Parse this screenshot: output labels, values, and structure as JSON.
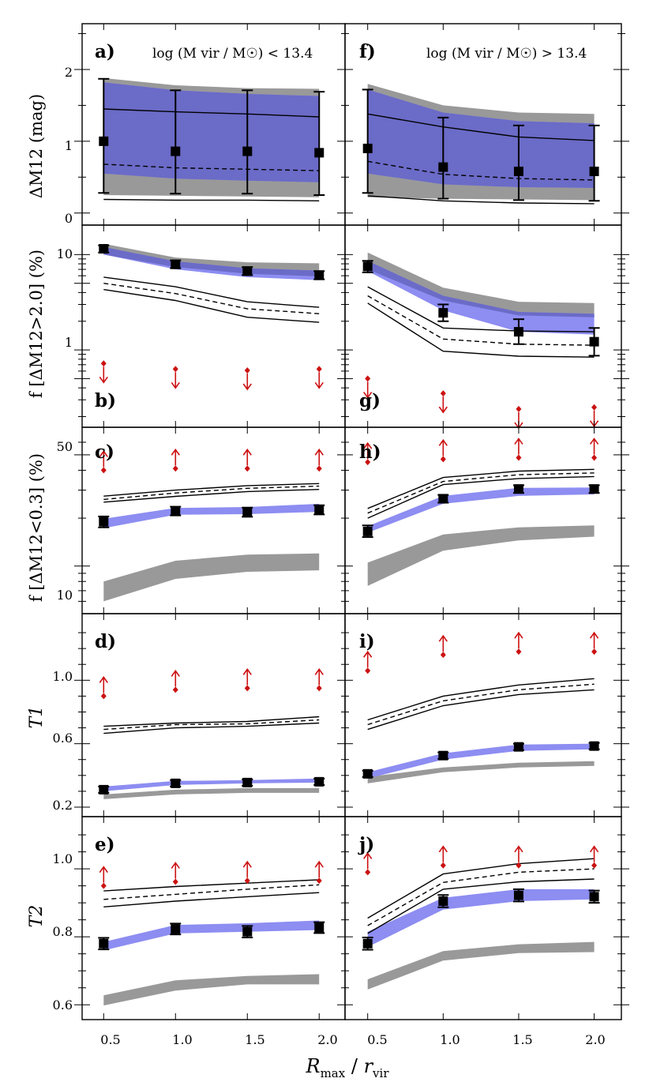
{
  "figure": {
    "xlabel_main": "R",
    "xlabel_sub": "max",
    "xlabel_sep": " / ",
    "xlabel_main2": "r",
    "xlabel_sub2": "vir",
    "x_ticks": [
      "0.5",
      "1.0",
      "1.5",
      "2.0"
    ],
    "x_values": [
      0.5,
      1.0,
      1.5,
      2.0
    ],
    "header_left": "log (M vir / M☉) < 13.4",
    "header_right": "log (M vir / M☉) > 13.4"
  },
  "rows": [
    {
      "ylabel": "ΔM12 (mag)",
      "ticks": [
        "0",
        "1",
        "2"
      ]
    },
    {
      "ylabel": "f [ΔM12>2.0] (%)",
      "ticks": [
        "1",
        "10"
      ]
    },
    {
      "ylabel": "f [ΔM12<0.3] (%)",
      "ticks": [
        "10",
        "50"
      ]
    },
    {
      "ylabel": "T1",
      "ticks": [
        "0.2",
        "0.6",
        "1.0"
      ]
    },
    {
      "ylabel": "T2",
      "ticks": [
        "0.6",
        "0.8",
        "1.0"
      ]
    }
  ],
  "colors": {
    "gray_band": "#999999",
    "blue_band": "#8d8df2",
    "overlap": "#6b6bc8",
    "arrow": "#cc1111",
    "marker": "#000000"
  },
  "chart_data": [
    {
      "panel": "a",
      "label": "a)",
      "type": "line",
      "row": 0,
      "col": 0,
      "yscale": "linear",
      "ylim": [
        -0.08,
        2.55
      ],
      "gray_band": {
        "lo": [
          0.25,
          0.24,
          0.23,
          0.22
        ],
        "hi": [
          1.88,
          1.78,
          1.74,
          1.73
        ]
      },
      "blue_band": {
        "lo": [
          0.55,
          0.48,
          0.45,
          0.43
        ],
        "hi": [
          1.82,
          1.71,
          1.66,
          1.63
        ]
      },
      "line_upper": [
        1.45,
        1.41,
        1.38,
        1.34
      ],
      "line_dashed": [
        0.68,
        0.63,
        0.61,
        0.59
      ],
      "line_lower": [
        0.19,
        0.18,
        0.18,
        0.17
      ],
      "points": [
        1.0,
        0.86,
        0.86,
        0.84
      ],
      "err_lo": [
        0.28,
        0.27,
        0.27,
        0.25
      ],
      "err_hi": [
        1.87,
        1.71,
        1.71,
        1.69
      ],
      "arrows": []
    },
    {
      "panel": "f",
      "label": "f)",
      "type": "line",
      "row": 0,
      "col": 1,
      "yscale": "linear",
      "ylim": [
        -0.08,
        2.55
      ],
      "gray_band": {
        "lo": [
          0.22,
          0.2,
          0.19,
          0.18
        ],
        "hi": [
          1.8,
          1.5,
          1.4,
          1.38
        ]
      },
      "blue_band": {
        "lo": [
          0.55,
          0.4,
          0.36,
          0.35
        ],
        "hi": [
          1.72,
          1.4,
          1.28,
          1.25
        ]
      },
      "line_upper": [
        1.38,
        1.2,
        1.06,
        1.01
      ],
      "line_dashed": [
        0.72,
        0.54,
        0.48,
        0.46
      ],
      "line_lower": [
        0.24,
        0.17,
        0.14,
        0.13
      ],
      "points": [
        0.9,
        0.64,
        0.58,
        0.58
      ],
      "err_lo": [
        0.28,
        0.2,
        0.18,
        0.17
      ],
      "err_hi": [
        1.72,
        1.33,
        1.22,
        1.22
      ],
      "arrows": []
    },
    {
      "panel": "b",
      "label": "b)",
      "type": "line",
      "row": 1,
      "col": 0,
      "yscale": "log",
      "ylim": [
        0.18,
        17.5
      ],
      "gray_band": {
        "lo": [
          10.0,
          7.4,
          6.3,
          5.9
        ],
        "hi": [
          13.0,
          9.3,
          8.3,
          8.1
        ]
      },
      "blue_band": {
        "lo": [
          10.0,
          7.0,
          5.8,
          5.4
        ],
        "hi": [
          12.0,
          8.5,
          7.2,
          6.8
        ]
      },
      "line_upper": [
        5.8,
        4.6,
        3.2,
        2.8
      ],
      "line_dashed": [
        5.0,
        3.9,
        2.7,
        2.4
      ],
      "line_lower": [
        4.3,
        3.3,
        2.2,
        1.95
      ],
      "points": [
        11.5,
        7.9,
        6.7,
        6.1
      ],
      "err_lo": [
        10.5,
        7.2,
        6.1,
        5.5
      ],
      "err_hi": [
        12.5,
        8.7,
        7.4,
        6.7
      ],
      "arrows": [
        {
          "y": 0.72,
          "dir": "down"
        },
        {
          "y": 0.63,
          "dir": "down"
        },
        {
          "y": 0.61,
          "dir": "down"
        },
        {
          "y": 0.63,
          "dir": "down"
        }
      ]
    },
    {
      "panel": "g",
      "label": "g)",
      "type": "line",
      "row": 1,
      "col": 1,
      "yscale": "log",
      "ylim": [
        0.18,
        17.5
      ],
      "gray_band": {
        "lo": [
          7.0,
          3.3,
          2.3,
          2.2
        ],
        "hi": [
          10.5,
          4.5,
          3.2,
          3.1
        ]
      },
      "blue_band": {
        "lo": [
          6.7,
          2.6,
          1.55,
          1.45
        ],
        "hi": [
          8.6,
          3.7,
          2.5,
          2.4
        ]
      },
      "line_upper": [
        4.6,
        1.7,
        1.58,
        1.55
      ],
      "line_dashed": [
        3.7,
        1.3,
        1.15,
        1.12
      ],
      "line_lower": [
        3.1,
        0.97,
        0.86,
        0.84
      ],
      "points": [
        7.5,
        2.45,
        1.55,
        1.22
      ],
      "err_lo": [
        6.5,
        2.0,
        1.15,
        0.87
      ],
      "err_hi": [
        8.6,
        3.0,
        2.1,
        1.7
      ],
      "arrows": [
        {
          "y": 0.5,
          "dir": "down"
        },
        {
          "y": 0.35,
          "dir": "down"
        },
        {
          "y": 0.24,
          "dir": "down"
        },
        {
          "y": 0.25,
          "dir": "down"
        }
      ]
    },
    {
      "panel": "c",
      "label": "c)",
      "type": "line",
      "row": 2,
      "col": 0,
      "yscale": "log",
      "ylim": [
        5.5,
        68
      ],
      "gray_band": {
        "lo": [
          6.0,
          8.3,
          9.2,
          9.4
        ],
        "hi": [
          8.0,
          10.8,
          11.8,
          12.0
        ]
      },
      "blue_band": {
        "lo": [
          17.3,
          21.0,
          21.2,
          21.9
        ],
        "hi": [
          19.8,
          23.2,
          23.5,
          24.6
        ]
      },
      "line_upper": [
        27.5,
        30.0,
        32.0,
        33.0
      ],
      "line_dashed": [
        26.2,
        28.8,
        30.8,
        31.8
      ],
      "line_lower": [
        25.2,
        27.4,
        29.4,
        30.3
      ],
      "points": [
        19.0,
        22.2,
        21.8,
        22.6
      ],
      "err_lo": [
        17.5,
        20.8,
        20.4,
        21.1
      ],
      "err_hi": [
        20.5,
        23.6,
        23.3,
        24.1
      ],
      "arrows": [
        {
          "y": 40.0,
          "dir": "up"
        },
        {
          "y": 41.0,
          "dir": "up"
        },
        {
          "y": 41.0,
          "dir": "up"
        },
        {
          "y": 41.0,
          "dir": "up"
        }
      ]
    },
    {
      "panel": "h",
      "label": "h)",
      "type": "line",
      "row": 2,
      "col": 1,
      "yscale": "log",
      "ylim": [
        5.5,
        68
      ],
      "gray_band": {
        "lo": [
          7.5,
          12.5,
          14.5,
          15.3
        ],
        "hi": [
          10.5,
          15.8,
          17.5,
          18.0
        ]
      },
      "blue_band": {
        "lo": [
          16.2,
          24.6,
          27.6,
          28.2
        ],
        "hi": [
          17.8,
          27.6,
          31.0,
          31.2
        ]
      },
      "line_upper": [
        23.0,
        36.0,
        39.5,
        40.5
      ],
      "line_dashed": [
        21.5,
        34.0,
        37.5,
        38.5
      ],
      "line_lower": [
        20.0,
        32.5,
        35.5,
        36.5
      ],
      "points": [
        16.5,
        26.5,
        30.5,
        30.5
      ],
      "err_lo": [
        15.2,
        25.0,
        28.8,
        28.8
      ],
      "err_hi": [
        18.0,
        28.0,
        32.2,
        32.2
      ],
      "arrows": [
        {
          "y": 45.0,
          "dir": "up"
        },
        {
          "y": 47.0,
          "dir": "up"
        },
        {
          "y": 48.0,
          "dir": "up"
        },
        {
          "y": 48.0,
          "dir": "up"
        }
      ]
    },
    {
      "panel": "d",
      "label": "d)",
      "type": "line",
      "row": 3,
      "col": 0,
      "yscale": "linear",
      "ylim": [
        0.18,
        1.38
      ],
      "gray_band": {
        "lo": [
          0.25,
          0.28,
          0.29,
          0.29
        ],
        "hi": [
          0.28,
          0.31,
          0.32,
          0.32
        ]
      },
      "blue_band": {
        "lo": [
          0.3,
          0.34,
          0.35,
          0.355
        ],
        "hi": [
          0.33,
          0.365,
          0.37,
          0.38
        ]
      },
      "line_upper": [
        0.71,
        0.73,
        0.74,
        0.77
      ],
      "line_dashed": [
        0.69,
        0.72,
        0.725,
        0.75
      ],
      "line_lower": [
        0.665,
        0.7,
        0.71,
        0.73
      ],
      "points": [
        0.31,
        0.35,
        0.355,
        0.36
      ],
      "err_lo": [
        0.29,
        0.33,
        0.335,
        0.34
      ],
      "err_hi": [
        0.33,
        0.37,
        0.375,
        0.38
      ],
      "arrows": [
        {
          "y": 0.9,
          "dir": "up"
        },
        {
          "y": 0.94,
          "dir": "up"
        },
        {
          "y": 0.95,
          "dir": "up"
        },
        {
          "y": 0.95,
          "dir": "up"
        }
      ]
    },
    {
      "panel": "i",
      "label": "i)",
      "type": "line",
      "row": 3,
      "col": 1,
      "yscale": "linear",
      "ylim": [
        0.18,
        1.38
      ],
      "gray_band": {
        "lo": [
          0.35,
          0.42,
          0.45,
          0.46
        ],
        "hi": [
          0.39,
          0.45,
          0.48,
          0.49
        ]
      },
      "blue_band": {
        "lo": [
          0.38,
          0.5,
          0.555,
          0.565
        ],
        "hi": [
          0.42,
          0.54,
          0.595,
          0.6
        ]
      },
      "line_upper": [
        0.75,
        0.9,
        0.97,
        1.01
      ],
      "line_dashed": [
        0.72,
        0.87,
        0.94,
        0.975
      ],
      "line_lower": [
        0.69,
        0.84,
        0.91,
        0.94
      ],
      "points": [
        0.41,
        0.525,
        0.58,
        0.585
      ],
      "err_lo": [
        0.39,
        0.505,
        0.56,
        0.565
      ],
      "err_hi": [
        0.43,
        0.545,
        0.6,
        0.605
      ],
      "arrows": [
        {
          "y": 1.06,
          "dir": "up"
        },
        {
          "y": 1.16,
          "dir": "up"
        },
        {
          "y": 1.18,
          "dir": "up"
        },
        {
          "y": 1.18,
          "dir": "up"
        }
      ]
    },
    {
      "panel": "e",
      "label": "e)",
      "type": "line",
      "row": 4,
      "col": 0,
      "yscale": "linear",
      "ylim": [
        0.575,
        1.135
      ],
      "gray_band": {
        "lo": [
          0.598,
          0.642,
          0.66,
          0.66
        ],
        "hi": [
          0.628,
          0.672,
          0.685,
          0.69
        ]
      },
      "blue_band": {
        "lo": [
          0.76,
          0.81,
          0.815,
          0.82
        ],
        "hi": [
          0.785,
          0.835,
          0.84,
          0.848
        ]
      },
      "line_upper": [
        0.935,
        0.948,
        0.958,
        0.968
      ],
      "line_dashed": [
        0.91,
        0.925,
        0.94,
        0.953
      ],
      "line_lower": [
        0.888,
        0.905,
        0.918,
        0.93
      ],
      "points": [
        0.78,
        0.823,
        0.815,
        0.827
      ],
      "err_lo": [
        0.763,
        0.807,
        0.798,
        0.811
      ],
      "err_hi": [
        0.797,
        0.839,
        0.832,
        0.843
      ],
      "arrows": [
        {
          "y": 0.95,
          "dir": "up"
        },
        {
          "y": 0.962,
          "dir": "up"
        },
        {
          "y": 0.965,
          "dir": "up"
        },
        {
          "y": 0.965,
          "dir": "up"
        }
      ]
    },
    {
      "panel": "j",
      "label": "j)",
      "type": "line",
      "row": 4,
      "col": 1,
      "yscale": "linear",
      "ylim": [
        0.575,
        1.135
      ],
      "gray_band": {
        "lo": [
          0.645,
          0.73,
          0.752,
          0.755
        ],
        "hi": [
          0.675,
          0.758,
          0.778,
          0.785
        ]
      },
      "blue_band": {
        "lo": [
          0.77,
          0.88,
          0.905,
          0.91
        ],
        "hi": [
          0.815,
          0.915,
          0.94,
          0.94
        ]
      },
      "line_upper": [
        0.855,
        0.985,
        1.015,
        1.03
      ],
      "line_dashed": [
        0.833,
        0.96,
        0.99,
        1.0
      ],
      "line_lower": [
        0.81,
        0.94,
        0.962,
        0.97
      ],
      "points": [
        0.78,
        0.905,
        0.922,
        0.918
      ],
      "err_lo": [
        0.762,
        0.887,
        0.904,
        0.9
      ],
      "err_hi": [
        0.798,
        0.923,
        0.94,
        0.936
      ],
      "arrows": [
        {
          "y": 0.99,
          "dir": "up"
        },
        {
          "y": 1.01,
          "dir": "up"
        },
        {
          "y": 1.01,
          "dir": "up"
        },
        {
          "y": 1.01,
          "dir": "up"
        }
      ]
    }
  ]
}
